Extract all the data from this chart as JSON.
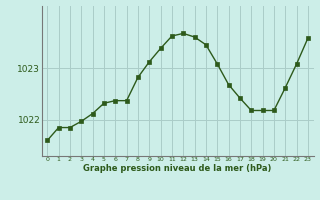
{
  "hours": [
    0,
    1,
    2,
    3,
    4,
    5,
    6,
    7,
    8,
    9,
    10,
    11,
    12,
    13,
    14,
    15,
    16,
    17,
    18,
    19,
    20,
    21,
    22,
    23
  ],
  "pressure": [
    1021.6,
    1021.85,
    1021.85,
    1021.97,
    1022.12,
    1022.32,
    1022.37,
    1022.37,
    1022.82,
    1023.12,
    1023.38,
    1023.62,
    1023.67,
    1023.6,
    1023.45,
    1023.08,
    1022.68,
    1022.42,
    1022.18,
    1022.18,
    1022.18,
    1022.62,
    1023.08,
    1023.58
  ],
  "line_color": "#2d5a1b",
  "marker_color": "#2d5a1b",
  "bg_color": "#cceee8",
  "grid_color": "#aaccc8",
  "tick_color": "#2d5a1b",
  "xlabel": "Graphe pression niveau de la mer (hPa)",
  "yticks": [
    1022,
    1023
  ],
  "ylim": [
    1021.3,
    1024.2
  ],
  "xlim": [
    -0.5,
    23.5
  ],
  "spine_color": "#777777"
}
